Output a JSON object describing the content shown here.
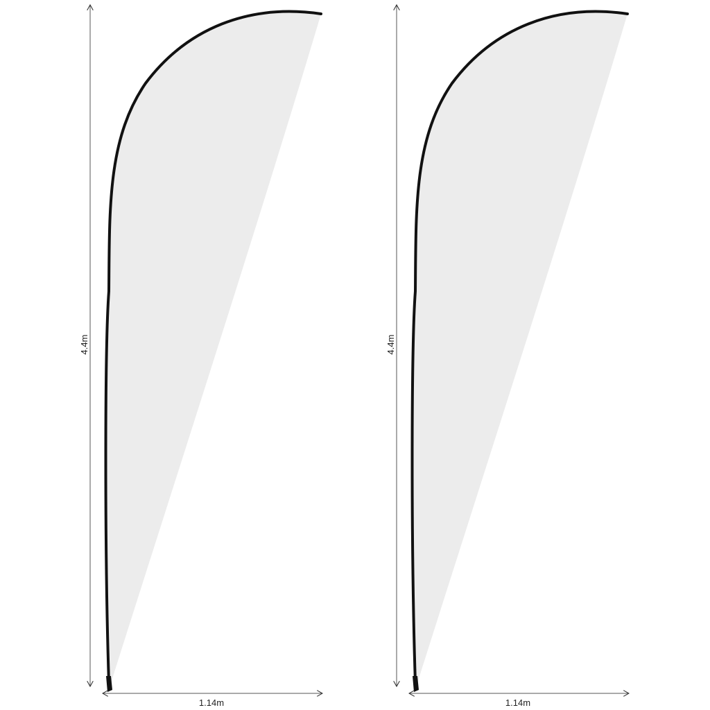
{
  "flags": [
    {
      "height_label": "4.4m",
      "width_label": "1.14m"
    },
    {
      "height_label": "4.4m",
      "width_label": "1.14m"
    }
  ],
  "colors": {
    "fabric": "#ececec",
    "pole": "#111111",
    "dimension_line": "#555555"
  }
}
